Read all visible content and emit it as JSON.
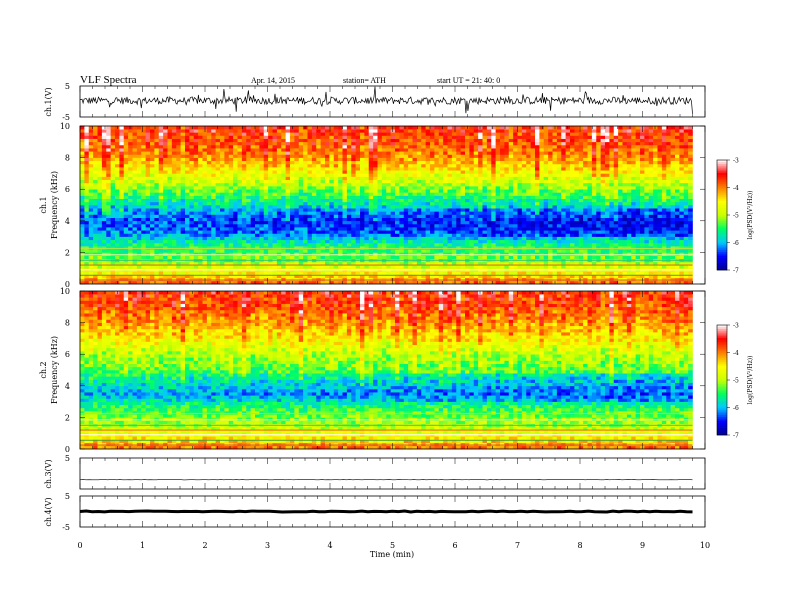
{
  "header": {
    "title": "VLF  Spectra",
    "date": "Apr. 14, 2015",
    "station": "station= ATH",
    "start": "start  UT  =    21: 40: 0"
  },
  "chart_data": [
    {
      "type": "line",
      "panel": "ch1-waveform",
      "ylabel": "ch.1(V)",
      "ylim": [
        -5,
        5
      ],
      "y_ticks": [
        "5",
        "-5"
      ],
      "x_range_min": [
        0,
        10
      ],
      "data_end_min": 9.8,
      "level_v": 0.3,
      "noise_v": 1.2
    },
    {
      "type": "heatmap",
      "panel": "ch1-spectrogram",
      "ylabel": "ch.1\nFrequency  (kHz)",
      "ylim_khz": [
        0,
        10
      ],
      "y_ticks": [
        "0",
        "2",
        "4",
        "6",
        "8",
        "10"
      ],
      "colorbar": {
        "label": "log(PSD(V²/Hz))",
        "ticks": [
          "-3",
          "-4",
          "-5",
          "-6",
          "-7"
        ],
        "range": [
          -7,
          -3
        ],
        "colors": [
          "#000090",
          "#0000ff",
          "#00c8ff",
          "#00ff60",
          "#c8ff00",
          "#ffff00",
          "#ff8000",
          "#ff0000",
          "#ffffff"
        ]
      },
      "profile_khz_vs_logpsd": [
        [
          0,
          -3.8
        ],
        [
          0.3,
          -4.2
        ],
        [
          1.5,
          -5.2
        ],
        [
          2.5,
          -5.6
        ],
        [
          3.2,
          -6.1
        ],
        [
          4.0,
          -6.3
        ],
        [
          5.0,
          -5.8
        ],
        [
          6.0,
          -5.2
        ],
        [
          7.0,
          -4.6
        ],
        [
          8.0,
          -4.1
        ],
        [
          9.0,
          -3.8
        ],
        [
          10.0,
          -3.6
        ]
      ]
    },
    {
      "type": "heatmap",
      "panel": "ch2-spectrogram",
      "ylabel": "ch.2\nFrequency  (kHz)",
      "ylim_khz": [
        0,
        10
      ],
      "y_ticks": [
        "0",
        "2",
        "4",
        "6",
        "8",
        "10"
      ],
      "colorbar": {
        "label": "log(PSD(V²/Hz))",
        "ticks": [
          "-3",
          "-4",
          "-5",
          "-6",
          "-7"
        ],
        "range": [
          -7,
          -3
        ]
      },
      "profile_khz_vs_logpsd": [
        [
          0,
          -3.8
        ],
        [
          0.3,
          -4.2
        ],
        [
          1.5,
          -5.0
        ],
        [
          2.5,
          -5.4
        ],
        [
          3.5,
          -6.0
        ],
        [
          4.5,
          -5.6
        ],
        [
          5.0,
          -5.3
        ],
        [
          6.0,
          -5.0
        ],
        [
          7.0,
          -4.5
        ],
        [
          8.0,
          -4.1
        ],
        [
          9.0,
          -3.8
        ],
        [
          10.0,
          -3.6
        ]
      ]
    },
    {
      "type": "line",
      "panel": "ch3-waveform",
      "ylabel": "ch.3(V)",
      "ylim": [
        -5,
        5
      ],
      "y_ticks": [
        "5"
      ],
      "level_v": -2.0,
      "noise_v": 0.05
    },
    {
      "type": "line",
      "panel": "ch4-waveform",
      "ylabel": "ch.4(V)",
      "ylim": [
        -5,
        5
      ],
      "y_ticks": [
        "5",
        "-5"
      ],
      "level_v": 0.0,
      "noise_v": 0.15
    }
  ],
  "x_axis": {
    "label": "Time  (min)",
    "ticks": [
      "0",
      "1",
      "2",
      "3",
      "4",
      "5",
      "6",
      "7",
      "8",
      "9",
      "10"
    ],
    "range": [
      0,
      10
    ]
  }
}
